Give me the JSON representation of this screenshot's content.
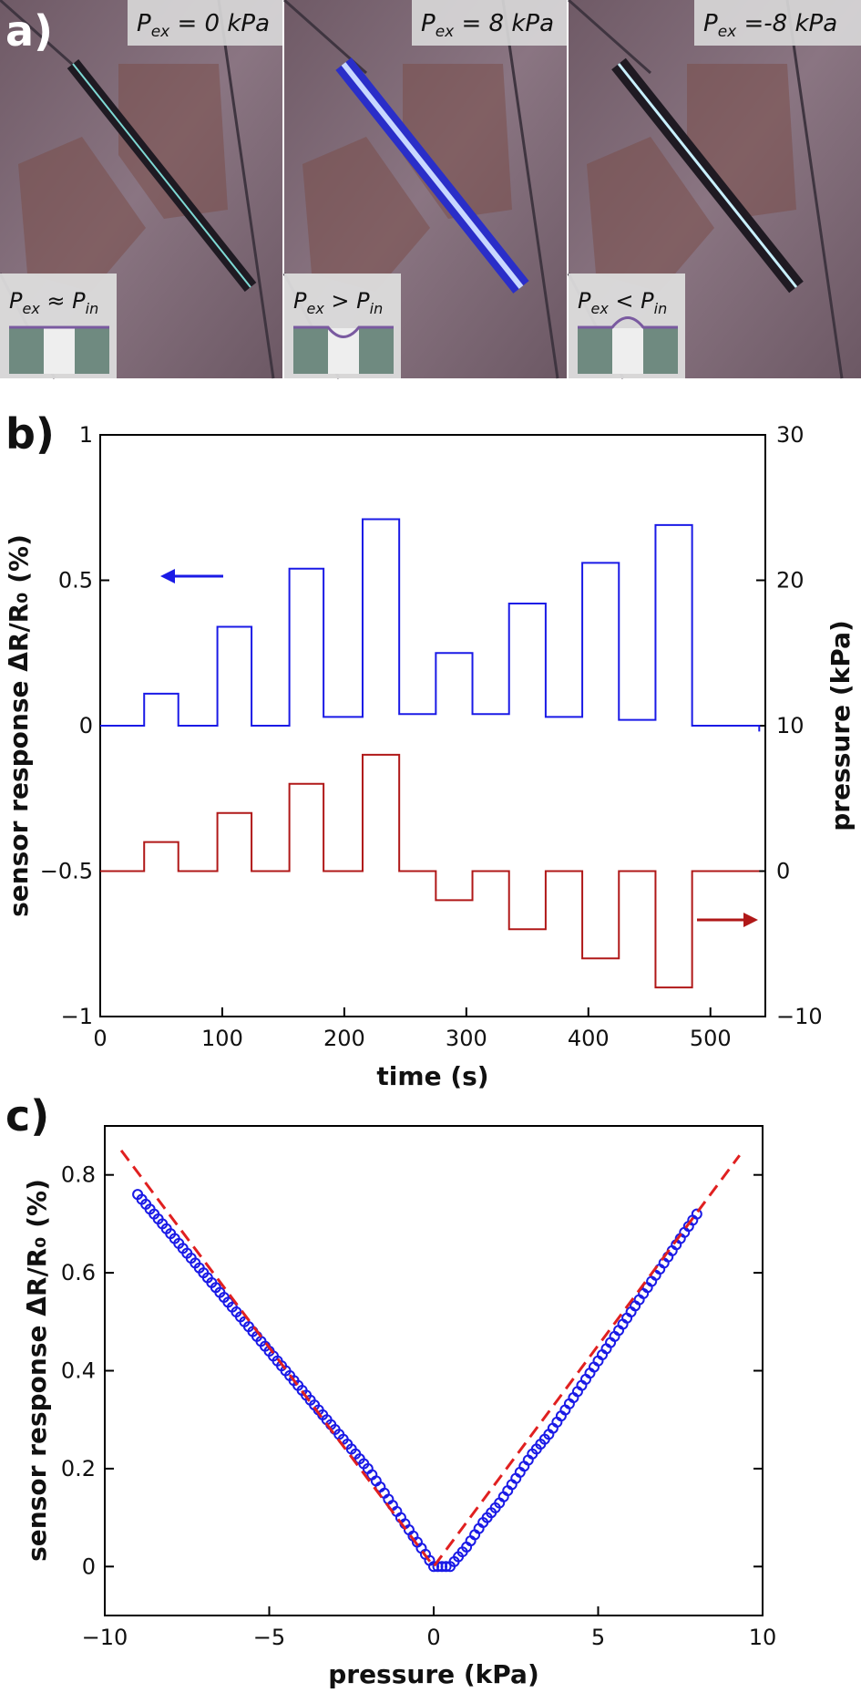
{
  "panels": {
    "a": {
      "label": "a)",
      "images": [
        {
          "condition": "P_ex = 0 kPa",
          "sub": "ex",
          "value": " = 0 kPa",
          "relation_left": "P",
          "relation_left_sub": "ex",
          "relation_op": " ≈ ",
          "relation_right": "P",
          "relation_right_sub": "in",
          "membrane": "flat"
        },
        {
          "condition": "P_ex = 8 kPa",
          "sub": "ex",
          "value": " = 8 kPa",
          "relation_left": "P",
          "relation_left_sub": "ex",
          "relation_op": " > ",
          "relation_right": "P",
          "relation_right_sub": "in",
          "membrane": "down"
        },
        {
          "condition": "P_ex = -8 kPa",
          "sub": "ex",
          "value": " =-8 kPa",
          "relation_left": "P",
          "relation_left_sub": "ex",
          "relation_op": " < ",
          "relation_right": "P",
          "relation_right_sub": "in",
          "membrane": "up"
        }
      ]
    },
    "b": {
      "label": "b)"
    },
    "c": {
      "label": "c)"
    }
  },
  "chart_data": [
    {
      "id": "b",
      "type": "line",
      "xlabel": "time (s)",
      "ylabel": "sensor response ΔR/R₀ (%)",
      "y2label": "pressure (kPa)",
      "xlim": [
        0,
        545
      ],
      "ylim": [
        -1,
        1
      ],
      "y2lim": [
        -10,
        30
      ],
      "xticks": [
        0,
        100,
        200,
        300,
        400,
        500
      ],
      "yticks": [
        -1,
        -0.5,
        0,
        0.5,
        1
      ],
      "yticklabels": [
        "−1",
        "−0.5",
        "0",
        "0.5",
        "1"
      ],
      "y2ticks": [
        -10,
        0,
        10,
        20,
        30
      ],
      "y2ticklabels": [
        "−10",
        "0",
        "10",
        "20",
        "30"
      ],
      "grid": false,
      "series": [
        {
          "axis": "left",
          "color": "#1a1ae6",
          "steps": [
            {
              "x": 0,
              "y": 0.0
            },
            {
              "x": 36,
              "y": 0.11
            },
            {
              "x": 64,
              "y": 0.0
            },
            {
              "x": 96,
              "y": 0.34
            },
            {
              "x": 124,
              "y": 0.0
            },
            {
              "x": 155,
              "y": 0.54
            },
            {
              "x": 183,
              "y": 0.03
            },
            {
              "x": 215,
              "y": 0.71
            },
            {
              "x": 245,
              "y": 0.04
            },
            {
              "x": 275,
              "y": 0.25
            },
            {
              "x": 305,
              "y": 0.04
            },
            {
              "x": 335,
              "y": 0.42
            },
            {
              "x": 365,
              "y": 0.03
            },
            {
              "x": 395,
              "y": 0.56
            },
            {
              "x": 425,
              "y": 0.02
            },
            {
              "x": 455,
              "y": 0.69
            },
            {
              "x": 485,
              "y": 0.0
            },
            {
              "x": 540,
              "y": -0.02
            }
          ]
        },
        {
          "axis": "right",
          "color": "#b01818",
          "steps": [
            {
              "x": 0,
              "y": 0
            },
            {
              "x": 36,
              "y": 2
            },
            {
              "x": 64,
              "y": 0
            },
            {
              "x": 96,
              "y": 4
            },
            {
              "x": 124,
              "y": 0
            },
            {
              "x": 155,
              "y": 6
            },
            {
              "x": 183,
              "y": 0
            },
            {
              "x": 215,
              "y": 8
            },
            {
              "x": 245,
              "y": 0
            },
            {
              "x": 275,
              "y": -2
            },
            {
              "x": 305,
              "y": 0
            },
            {
              "x": 335,
              "y": -4
            },
            {
              "x": 365,
              "y": 0
            },
            {
              "x": 395,
              "y": -6
            },
            {
              "x": 425,
              "y": 0
            },
            {
              "x": 455,
              "y": -8
            },
            {
              "x": 485,
              "y": 0
            },
            {
              "x": 540,
              "y": 0
            }
          ]
        }
      ]
    },
    {
      "id": "c",
      "type": "scatter",
      "xlabel": "pressure (kPa)",
      "ylabel": "sensor response ΔR/R₀ (%)",
      "xlim": [
        -10,
        10
      ],
      "ylim": [
        -0.1,
        0.9
      ],
      "xticks": [
        -10,
        -5,
        0,
        5,
        10
      ],
      "xticklabels": [
        "−10",
        "−5",
        "0",
        "5",
        "10"
      ],
      "yticks": [
        0,
        0.2,
        0.4,
        0.6,
        0.8
      ],
      "yticklabels": [
        "0",
        "0.2",
        "0.4",
        "0.6",
        "0.8"
      ],
      "grid": false,
      "series": [
        {
          "kind": "points",
          "color": "#1a1ae6",
          "x": [
            -9,
            -8.5,
            -8,
            -7.5,
            -7,
            -6.5,
            -6,
            -5.5,
            -5,
            -4.5,
            -4,
            -3.5,
            -3,
            -2.5,
            -2,
            -1.5,
            -1,
            -0.5,
            0,
            0.5,
            1,
            1.5,
            2,
            2.5,
            3,
            3.5,
            4,
            4.5,
            5,
            5.5,
            6,
            6.5,
            7,
            7.5,
            8
          ],
          "y": [
            0.76,
            0.72,
            0.68,
            0.64,
            0.6,
            0.56,
            0.52,
            0.48,
            0.44,
            0.4,
            0.36,
            0.32,
            0.28,
            0.24,
            0.2,
            0.15,
            0.1,
            0.05,
            0.0,
            0.0,
            0.04,
            0.09,
            0.13,
            0.18,
            0.23,
            0.27,
            0.32,
            0.37,
            0.42,
            0.47,
            0.52,
            0.57,
            0.62,
            0.67,
            0.72
          ]
        },
        {
          "kind": "dashed-line",
          "color": "#e02020",
          "x": [
            -9.5,
            0,
            9.3
          ],
          "y": [
            0.85,
            0.0,
            0.84
          ]
        }
      ]
    }
  ]
}
